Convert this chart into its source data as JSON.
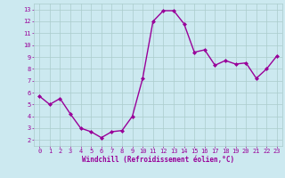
{
  "x": [
    0,
    1,
    2,
    3,
    4,
    5,
    6,
    7,
    8,
    9,
    10,
    11,
    12,
    13,
    14,
    15,
    16,
    17,
    18,
    19,
    20,
    21,
    22,
    23
  ],
  "y": [
    5.7,
    5.0,
    5.5,
    4.2,
    3.0,
    2.7,
    2.2,
    2.7,
    2.8,
    4.0,
    7.2,
    12.0,
    12.9,
    12.9,
    11.8,
    9.4,
    9.6,
    8.3,
    8.7,
    8.4,
    8.5,
    7.2,
    8.0,
    9.1
  ],
  "line_color": "#990099",
  "marker": "D",
  "markersize": 2.0,
  "linewidth": 1.0,
  "bg_color": "#cce9f0",
  "grid_color": "#aacccc",
  "xlabel": "Windchill (Refroidissement éolien,°C)",
  "xlabel_fontsize": 5.5,
  "xlabel_color": "#990099",
  "tick_fontsize": 5.0,
  "tick_color": "#990099",
  "ylim": [
    1.5,
    13.5
  ],
  "yticks": [
    2,
    3,
    4,
    5,
    6,
    7,
    8,
    9,
    10,
    11,
    12,
    13
  ],
  "xticks": [
    0,
    1,
    2,
    3,
    4,
    5,
    6,
    7,
    8,
    9,
    10,
    11,
    12,
    13,
    14,
    15,
    16,
    17,
    18,
    19,
    20,
    21,
    22,
    23
  ]
}
